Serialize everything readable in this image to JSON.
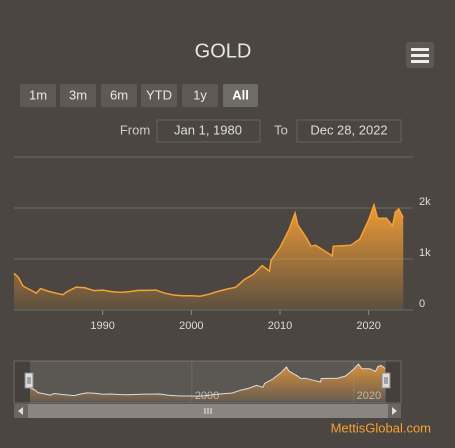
{
  "chart_data": {
    "type": "area",
    "title": "GOLD",
    "range_buttons": [
      "1m",
      "3m",
      "6m",
      "YTD",
      "1y",
      "All"
    ],
    "from_label": "From",
    "from_date": "Jan 1, 1980",
    "to_label": "To",
    "to_date": "Dec 28, 2022",
    "color": "#f7a035",
    "x": [
      1980,
      1980.5,
      1981,
      1982,
      1982.5,
      1983,
      1984,
      1985,
      1985.5,
      1986,
      1987,
      1988,
      1989,
      1990,
      1991,
      1992,
      1993,
      1994,
      1995,
      1996,
      1997,
      1998,
      1999,
      2000,
      2001,
      2002,
      2003,
      2004,
      2005,
      2006,
      2007,
      2008,
      2008.8,
      2009,
      2010,
      2011,
      2011.7,
      2012,
      2013,
      2013.5,
      2014,
      2015,
      2015.9,
      2016,
      2017,
      2018,
      2019,
      2020,
      2020.6,
      2021,
      2022,
      2022.7,
      2023,
      2023.4,
      2023.9
    ],
    "values": [
      720,
      640,
      470,
      380,
      330,
      420,
      360,
      320,
      300,
      360,
      450,
      435,
      380,
      390,
      360,
      345,
      360,
      385,
      385,
      390,
      330,
      295,
      280,
      280,
      270,
      310,
      365,
      410,
      445,
      600,
      700,
      870,
      760,
      975,
      1225,
      1570,
      1900,
      1670,
      1410,
      1250,
      1270,
      1160,
      1060,
      1250,
      1260,
      1270,
      1390,
      1770,
      2060,
      1800,
      1800,
      1650,
      1920,
      1980,
      1810
    ],
    "xlim": [
      1980,
      2025
    ],
    "xticks": [
      1990,
      2000,
      2010,
      2020
    ],
    "ylim": [
      0,
      3000
    ],
    "yticks": [
      0,
      {
        "value": 1000,
        "label": "1k"
      },
      {
        "value": 2000,
        "label": "2k"
      }
    ],
    "grid": true,
    "navigator": {
      "xlim": [
        1980,
        2024
      ],
      "xticks": [
        2000,
        2020
      ]
    },
    "source": "MettisGlobal.com"
  }
}
